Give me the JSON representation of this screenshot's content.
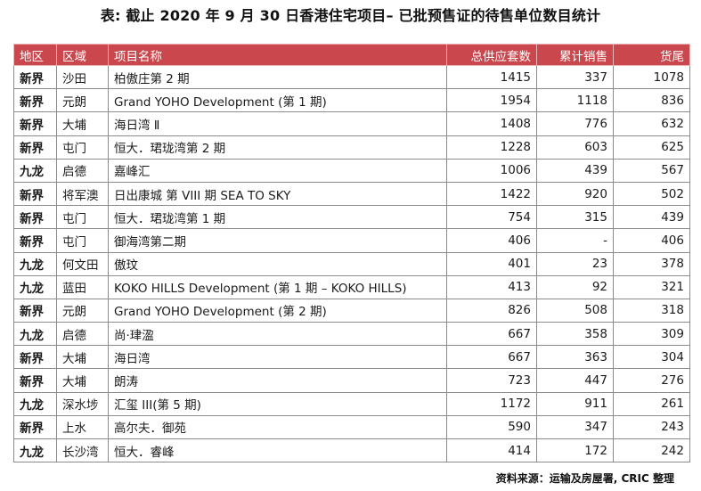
{
  "title": "表: 截止 2020 年 9 月 30 日香港住宅项目– 已批预售证的待售单位数目统计",
  "table": {
    "headers": {
      "region": "地区",
      "district": "区域",
      "project": "项目名称",
      "total_supply": "总供应套数",
      "cumulative_sales": "累计销售",
      "remaining": "货尾"
    },
    "rows": [
      [
        "新界",
        "沙田",
        "柏傲庄第 2 期",
        "1415",
        "337",
        "1078"
      ],
      [
        "新界",
        "元朗",
        "Grand YOHO Development (第 1 期)",
        "1954",
        "1118",
        "836"
      ],
      [
        "新界",
        "大埔",
        "海日湾 Ⅱ",
        "1408",
        "776",
        "632"
      ],
      [
        "新界",
        "屯门",
        "恒大．珺珑湾第 2 期",
        "1228",
        "603",
        "625"
      ],
      [
        "九龙",
        "启德",
        "嘉峰汇",
        "1006",
        "439",
        "567"
      ],
      [
        "新界",
        "将军澳",
        "日出康城 第 VIII 期 SEA TO SKY",
        "1422",
        "920",
        "502"
      ],
      [
        "新界",
        "屯门",
        "恒大．珺珑湾第 1 期",
        "754",
        "315",
        "439"
      ],
      [
        "新界",
        "屯门",
        "御海湾第二期",
        "406",
        "-",
        "406"
      ],
      [
        "九龙",
        "何文田",
        "傲玟",
        "401",
        "23",
        "378"
      ],
      [
        "九龙",
        "蓝田",
        "KOKO HILLS Development (第 1 期 – KOKO HILLS)",
        "413",
        "92",
        "321"
      ],
      [
        "新界",
        "元朗",
        "Grand YOHO Development (第 2 期)",
        "826",
        "508",
        "318"
      ],
      [
        "九龙",
        "启德",
        "尚·珒溋",
        "667",
        "358",
        "309"
      ],
      [
        "新界",
        "大埔",
        "海日湾",
        "667",
        "363",
        "304"
      ],
      [
        "新界",
        "大埔",
        "朗涛",
        "723",
        "447",
        "276"
      ],
      [
        "九龙",
        "深水埗",
        "汇玺 III(第 5 期)",
        "1172",
        "911",
        "261"
      ],
      [
        "新界",
        "上水",
        "高尔夫．御苑",
        "590",
        "347",
        "243"
      ],
      [
        "九龙",
        "长沙湾",
        "恒大．睿峰",
        "414",
        "172",
        "242"
      ]
    ]
  },
  "source": "资料来源：运输及房屋署, CRIC 整理",
  "colors": {
    "header_background": "#c9474d",
    "header_text": "#ffffff",
    "border": "#8b8b8b"
  }
}
